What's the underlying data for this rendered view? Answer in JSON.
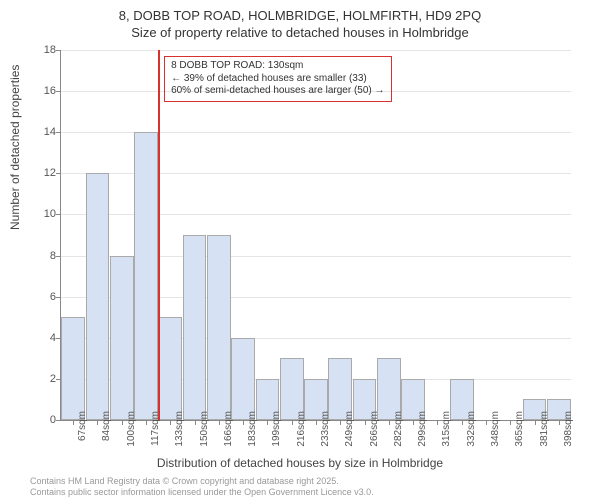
{
  "title_line1": "8, DOBB TOP ROAD, HOLMBRIDGE, HOLMFIRTH, HD9 2PQ",
  "title_line2": "Size of property relative to detached houses in Holmbridge",
  "chart": {
    "type": "bar",
    "y_label": "Number of detached properties",
    "x_label": "Distribution of detached houses by size in Holmbridge",
    "ylim_max": 18,
    "ytick_step": 2,
    "bar_fill": "#d6e1f3",
    "bar_border": "#aaaaaa",
    "grid_color": "#e5e5e5",
    "background": "#ffffff",
    "categories": [
      "67sqm",
      "84sqm",
      "100sqm",
      "117sqm",
      "133sqm",
      "150sqm",
      "166sqm",
      "183sqm",
      "199sqm",
      "216sqm",
      "233sqm",
      "249sqm",
      "266sqm",
      "282sqm",
      "299sqm",
      "315sqm",
      "332sqm",
      "348sqm",
      "365sqm",
      "381sqm",
      "398sqm"
    ],
    "values": [
      5,
      12,
      8,
      14,
      5,
      9,
      9,
      4,
      2,
      3,
      2,
      3,
      2,
      3,
      2,
      0,
      2,
      0,
      0,
      1,
      1
    ],
    "marker": {
      "color": "#d93030",
      "x_value_sqm": 130,
      "x_axis_min_sqm": 67,
      "x_axis_max_sqm": 398,
      "annotation_lines": [
        "8 DOBB TOP ROAD: 130sqm",
        "← 39% of detached houses are smaller (33)",
        "60% of semi-detached houses are larger (50) →"
      ],
      "annotation_border": "#d93030"
    }
  },
  "footer_line1": "Contains HM Land Registry data © Crown copyright and database right 2025.",
  "footer_line2": "Contains public sector information licensed under the Open Government Licence v3.0."
}
